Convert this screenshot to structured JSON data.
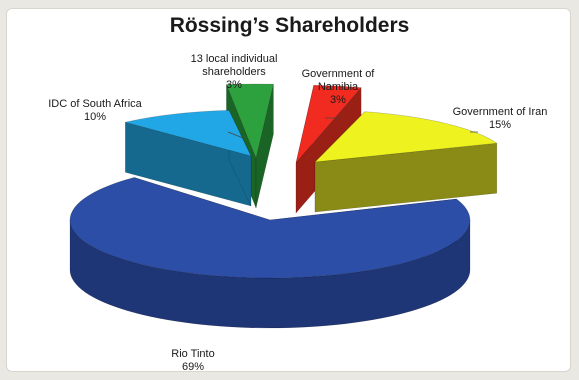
{
  "chart_data": {
    "type": "pie",
    "title": "Rössing’s Shareholders",
    "slices": [
      {
        "label_lines": [
          "Government of",
          "Namibia"
        ],
        "value_label": "3%",
        "value": 3,
        "color": "#f12b20",
        "side": "#9a2016"
      },
      {
        "label_lines": [
          "Government of Iran"
        ],
        "value_label": "15%",
        "value": 15,
        "color": "#eef21e",
        "side": "#8a8a16"
      },
      {
        "label_lines": [
          "Rio Tinto"
        ],
        "value_label": "69%",
        "value": 69,
        "color": "#2c4ea6",
        "side": "#1e3576"
      },
      {
        "label_lines": [
          "IDC of South Africa"
        ],
        "value_label": "10%",
        "value": 10,
        "color": "#21a7e6",
        "side": "#15698f"
      },
      {
        "label_lines": [
          "13 local individual",
          "shareholders"
        ],
        "value_label": "3%",
        "value": 3,
        "color": "#2ea13f",
        "side": "#1a6526"
      }
    ]
  }
}
